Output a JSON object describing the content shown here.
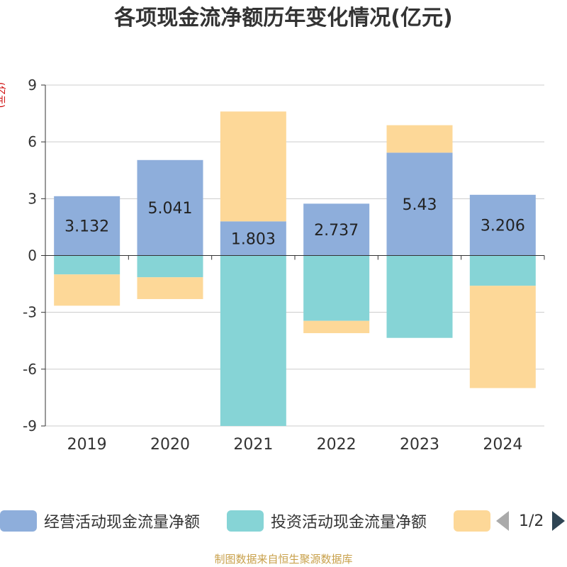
{
  "title": "各项现金流净额历年变化情况(亿元)",
  "unit_label": "(亿元)",
  "source": "制图数据来自恒生聚源数据库",
  "legend": {
    "items": [
      {
        "label": "经营活动现金流量净额",
        "color": "#8eaedb"
      },
      {
        "label": "投资活动现金流量净额",
        "color": "#86d4d6"
      },
      {
        "label": "",
        "color": "#fdd898"
      }
    ],
    "page": "1/2"
  },
  "chart_data": {
    "type": "bar",
    "stacked": true,
    "categories": [
      "2019",
      "2020",
      "2021",
      "2022",
      "2023",
      "2024"
    ],
    "ylim": [
      -9,
      9
    ],
    "yticks": [
      "9",
      "6",
      "3",
      "0",
      "-3",
      "-6",
      "-9"
    ],
    "grid": true,
    "legend_position": "bottom",
    "series": [
      {
        "name": "经营活动现金流量净额",
        "color": "#8eaedb",
        "values": [
          3.132,
          5.041,
          1.803,
          2.737,
          5.43,
          3.206
        ],
        "labels": [
          "3.132",
          "5.041",
          "1.803",
          "2.737",
          "5.43",
          "3.206"
        ]
      },
      {
        "name": "投资活动现金流量净额",
        "color": "#86d4d6",
        "values": [
          -1.0,
          -1.15,
          -9.0,
          -3.45,
          -4.35,
          -1.6
        ]
      },
      {
        "color": "#fdd898",
        "values": [
          -1.65,
          -1.15,
          5.8,
          -0.65,
          1.45,
          -5.4
        ]
      }
    ]
  }
}
